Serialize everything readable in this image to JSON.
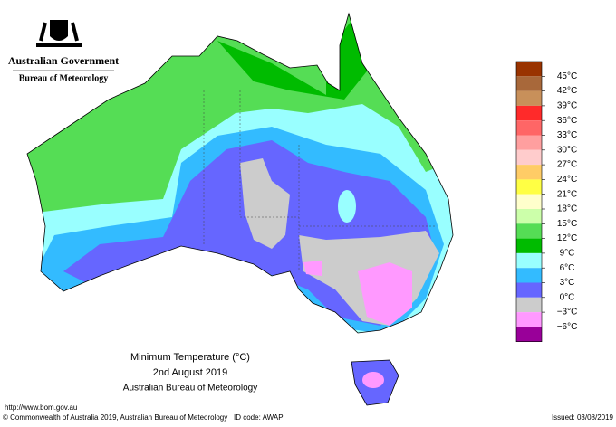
{
  "header": {
    "government": "Australian Government",
    "bureau": "Bureau of Meteorology"
  },
  "title": {
    "line1": "Minimum Temperature (°C)",
    "line2": "2nd August 2019",
    "line3": "Australian Bureau of Meteorology"
  },
  "legend": {
    "colors": [
      "#993300",
      "#a8683a",
      "#c8905a",
      "#ff2a2a",
      "#ff6666",
      "#ff9f9f",
      "#ffcccc",
      "#ffcc66",
      "#ffff44",
      "#ffffcc",
      "#ccffaa",
      "#55dd55",
      "#00bb00",
      "#99ffff",
      "#33bbff",
      "#6666ff",
      "#cccccc",
      "#ff99ff",
      "#990099"
    ],
    "labels": [
      "45°C",
      "42°C",
      "39°C",
      "36°C",
      "33°C",
      "30°C",
      "27°C",
      "24°C",
      "21°C",
      "18°C",
      "15°C",
      "12°C",
      "9°C",
      "6°C",
      "3°C",
      "0°C",
      "−3°C",
      "−6°C"
    ]
  },
  "footer": {
    "url": "http://www.bom.gov.au",
    "copyright": "© Commonwealth of Australia 2019, Australian Bureau of Meteorology",
    "id_code": "ID code: AWAP",
    "issued": "Issued: 03/08/2019"
  }
}
